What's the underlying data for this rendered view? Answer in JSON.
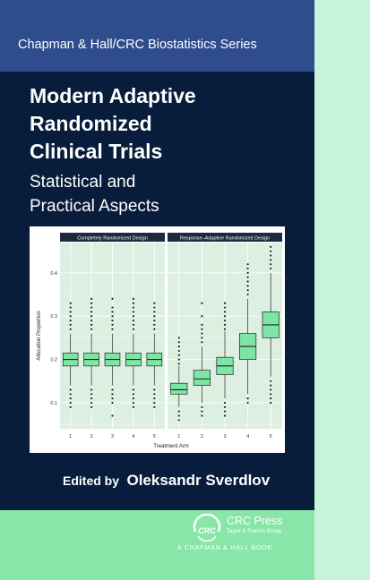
{
  "series": "Chapman & Hall/CRC Biostatistics Series",
  "title_lines": [
    "Modern Adaptive",
    "Randomized",
    "Clinical Trials"
  ],
  "subtitle_lines": [
    "Statistical and",
    "Practical Aspects"
  ],
  "editor": {
    "prefix": "Edited by",
    "name": "Oleksandr Sverdlov"
  },
  "publisher": {
    "name": "CRC Press",
    "group": "Taylor & Francis Group",
    "imprint": "A CHAPMAN & HALL BOOK",
    "logo_text": "CRC"
  },
  "colors": {
    "navy": "#081d3b",
    "blue_band": "#2f4d8c",
    "green": "#88e6a8",
    "spine": "#c9f4dc",
    "box_fill": "#7de6a6"
  },
  "chart_data": {
    "type": "box",
    "ylabel": "Allocation Proportion",
    "xlabel": "Treatment Arm",
    "ylim": [
      0.04,
      0.47
    ],
    "yticks": [
      "0.1",
      "0.2",
      "0.3",
      "0.4"
    ],
    "grid": true,
    "panels": [
      {
        "name": "Completely Randomized Design",
        "categories": [
          "1",
          "2",
          "3",
          "4",
          "5"
        ],
        "boxes": [
          {
            "q1": 0.185,
            "median": 0.2,
            "q3": 0.215,
            "wmin": 0.14,
            "wmax": 0.26,
            "outliers": [
              0.27,
              0.28,
              0.29,
              0.3,
              0.31,
              0.32,
              0.33,
              0.13,
              0.12,
              0.11,
              0.1,
              0.09
            ]
          },
          {
            "q1": 0.185,
            "median": 0.2,
            "q3": 0.215,
            "wmin": 0.14,
            "wmax": 0.26,
            "outliers": [
              0.27,
              0.28,
              0.29,
              0.3,
              0.31,
              0.32,
              0.33,
              0.34,
              0.13,
              0.12,
              0.11,
              0.1,
              0.09
            ]
          },
          {
            "q1": 0.185,
            "median": 0.2,
            "q3": 0.215,
            "wmin": 0.14,
            "wmax": 0.26,
            "outliers": [
              0.27,
              0.28,
              0.29,
              0.3,
              0.31,
              0.32,
              0.34,
              0.13,
              0.12,
              0.11,
              0.1,
              0.07
            ]
          },
          {
            "q1": 0.185,
            "median": 0.2,
            "q3": 0.215,
            "wmin": 0.14,
            "wmax": 0.26,
            "outliers": [
              0.27,
              0.28,
              0.29,
              0.3,
              0.31,
              0.32,
              0.33,
              0.34,
              0.13,
              0.12,
              0.11,
              0.1,
              0.09
            ]
          },
          {
            "q1": 0.185,
            "median": 0.2,
            "q3": 0.215,
            "wmin": 0.14,
            "wmax": 0.26,
            "outliers": [
              0.27,
              0.28,
              0.29,
              0.3,
              0.31,
              0.32,
              0.33,
              0.13,
              0.12,
              0.11,
              0.1,
              0.09
            ]
          }
        ]
      },
      {
        "name": "Response–Adaptive Randomized Design",
        "categories": [
          "1",
          "2",
          "3",
          "4",
          "5"
        ],
        "boxes": [
          {
            "q1": 0.12,
            "median": 0.13,
            "q3": 0.145,
            "wmin": 0.09,
            "wmax": 0.185,
            "outliers": [
              0.19,
              0.2,
              0.21,
              0.22,
              0.23,
              0.24,
              0.25,
              0.08,
              0.07,
              0.06
            ]
          },
          {
            "q1": 0.14,
            "median": 0.155,
            "q3": 0.175,
            "wmin": 0.1,
            "wmax": 0.23,
            "outliers": [
              0.24,
              0.25,
              0.26,
              0.27,
              0.28,
              0.3,
              0.33,
              0.09,
              0.08,
              0.07
            ]
          },
          {
            "q1": 0.165,
            "median": 0.185,
            "q3": 0.205,
            "wmin": 0.11,
            "wmax": 0.265,
            "outliers": [
              0.27,
              0.28,
              0.29,
              0.3,
              0.31,
              0.32,
              0.33,
              0.1,
              0.09,
              0.08,
              0.07
            ]
          },
          {
            "q1": 0.2,
            "median": 0.23,
            "q3": 0.26,
            "wmin": 0.12,
            "wmax": 0.34,
            "outliers": [
              0.35,
              0.36,
              0.37,
              0.38,
              0.39,
              0.4,
              0.41,
              0.42,
              0.11,
              0.1
            ]
          },
          {
            "q1": 0.25,
            "median": 0.28,
            "q3": 0.31,
            "wmin": 0.16,
            "wmax": 0.4,
            "outliers": [
              0.41,
              0.42,
              0.43,
              0.44,
              0.45,
              0.46,
              0.15,
              0.14,
              0.13,
              0.12,
              0.11,
              0.1
            ]
          }
        ]
      }
    ]
  }
}
